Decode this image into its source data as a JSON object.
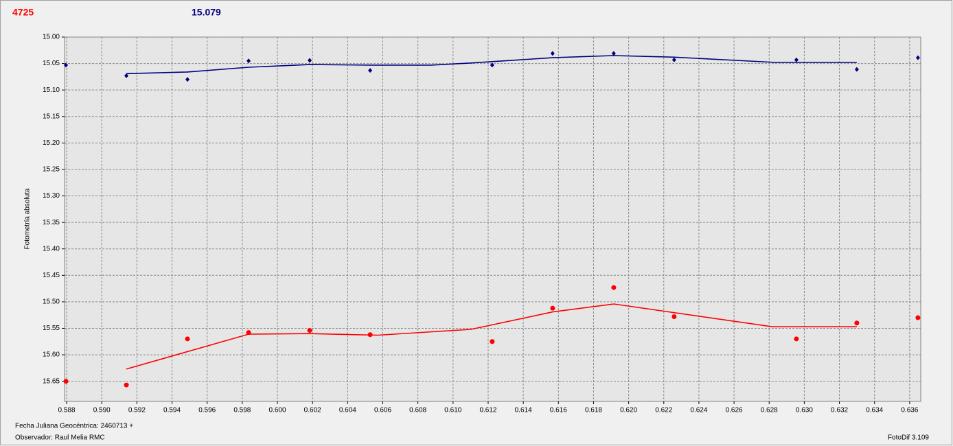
{
  "chart_data": {
    "type": "scatter",
    "header_left": "4725",
    "header_right": "15.079",
    "ylabel": "Fotometría absoluta",
    "footer_lines": [
      "Fecha Juliana Geocéntrica: 2460713 +",
      "Observador: Raul Melia RMC"
    ],
    "footer_right": "FotoDif 3.109",
    "grid": true,
    "y_inverted": true,
    "xlim": [
      0.58788,
      0.63663
    ],
    "ylim": [
      15.0,
      15.688
    ],
    "xticks": [
      0.588,
      {
        "value": 0.59,
        "label": "0.590"
      },
      0.592,
      0.594,
      0.596,
      0.598,
      {
        "value": 0.6,
        "label": "0.600"
      },
      0.602,
      0.604,
      0.606,
      0.608,
      {
        "value": 0.61,
        "label": "0.610"
      },
      0.612,
      0.614,
      0.616,
      0.618,
      {
        "value": 0.62,
        "label": "0.620"
      },
      0.622,
      0.624,
      0.626,
      0.628,
      {
        "value": 0.63,
        "label": "0.630"
      },
      0.632,
      0.634,
      0.636
    ],
    "yticks": [
      {
        "value": 15.0,
        "label": "15.00"
      },
      15.05,
      {
        "value": 15.1,
        "label": "15.10"
      },
      15.15,
      {
        "value": 15.2,
        "label": "15.20"
      },
      15.25,
      {
        "value": 15.3,
        "label": "15.30"
      },
      15.35,
      {
        "value": 15.4,
        "label": "15.40"
      },
      15.45,
      {
        "value": 15.5,
        "label": "15.50"
      },
      15.55,
      {
        "value": 15.6,
        "label": "15.60"
      },
      15.65
    ],
    "series": [
      {
        "type": "scatter",
        "marker": "diamond",
        "color": "#000080",
        "x": [
          0.58796,
          0.5914,
          0.59488,
          0.59836,
          0.60184,
          0.60528,
          0.61223,
          0.61567,
          0.61915,
          0.62259,
          0.62955,
          0.63299,
          0.63647
        ],
        "values": [
          15.053,
          15.073,
          15.08,
          15.045,
          15.044,
          15.063,
          15.053,
          15.031,
          15.031,
          15.043,
          15.043,
          15.061,
          15.039
        ]
      },
      {
        "type": "scatter",
        "marker": "circle",
        "color": "#ff0000",
        "x": [
          0.58796,
          0.5914,
          0.59488,
          0.59836,
          0.60184,
          0.60528,
          0.61223,
          0.61567,
          0.61915,
          0.62259,
          0.62955,
          0.63299,
          0.63647
        ],
        "values": [
          15.65,
          15.657,
          15.57,
          15.558,
          15.554,
          15.562,
          15.575,
          15.512,
          15.473,
          15.528,
          15.57,
          15.54,
          15.53
        ]
      },
      {
        "type": "line",
        "color": "#000080",
        "x": [
          0.5914,
          0.59488,
          0.59836,
          0.60184,
          0.60528,
          0.60876,
          0.61102,
          0.61567,
          0.61915,
          0.62259,
          0.62838,
          0.63299
        ],
        "values": [
          15.069,
          15.066,
          15.057,
          15.052,
          15.053,
          15.053,
          15.049,
          15.039,
          15.035,
          15.038,
          15.048,
          15.048
        ]
      },
      {
        "type": "line",
        "color": "#ff0000",
        "x": [
          0.5914,
          0.59836,
          0.60184,
          0.60571,
          0.61102,
          0.61567,
          0.61915,
          0.62818,
          0.63299
        ],
        "values": [
          15.627,
          15.561,
          15.56,
          15.563,
          15.552,
          15.519,
          15.504,
          15.547,
          15.547
        ]
      }
    ]
  }
}
